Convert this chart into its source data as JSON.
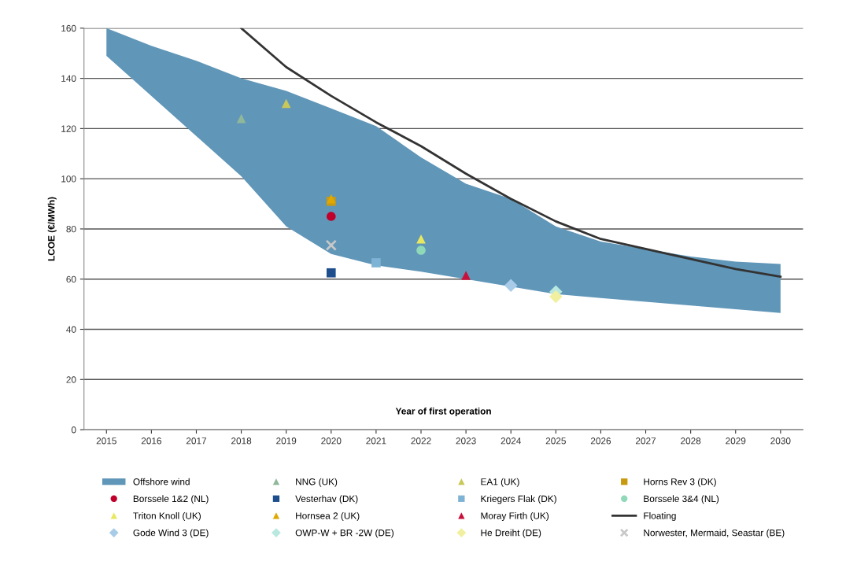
{
  "chart_data": {
    "type": "scatter",
    "xlabel": "Year of first operation",
    "ylabel": "LCOE (€/MWh)",
    "xlim": [
      2014.5,
      2030.5
    ],
    "xticks": [
      2015,
      2016,
      2017,
      2018,
      2019,
      2020,
      2021,
      2022,
      2023,
      2024,
      2025,
      2026,
      2027,
      2028,
      2029,
      2030
    ],
    "ylim": [
      0,
      160
    ],
    "yticks": [
      0,
      20,
      40,
      60,
      80,
      100,
      120,
      140,
      160
    ],
    "grid": "y",
    "legend": "bottom",
    "series": [
      {
        "name": "Offshore wind",
        "type": "area",
        "color": "#6096b8",
        "x": [
          2015,
          2016,
          2017,
          2018,
          2019,
          2020,
          2021,
          2022,
          2023,
          2024,
          2025,
          2026,
          2027,
          2028,
          2029,
          2030
        ],
        "lower": [
          149,
          133,
          117,
          101,
          81,
          70,
          65.5,
          63,
          60,
          57,
          54,
          52.5,
          51,
          49.5,
          48,
          46.5
        ],
        "upper": [
          160,
          153,
          147,
          140,
          135,
          128,
          121,
          108.5,
          98,
          92,
          81,
          75,
          72,
          69,
          67,
          66
        ],
        "values": [
          null,
          null,
          null,
          null,
          null,
          null,
          null,
          null,
          null,
          null,
          null,
          null,
          null,
          null,
          null,
          null
        ]
      },
      {
        "name": "NNG (UK)",
        "type": "scatter",
        "marker": "triangle",
        "color": "#8fb89a",
        "x": [
          2018
        ],
        "values": [
          124
        ]
      },
      {
        "name": "EA1 (UK)",
        "type": "scatter",
        "marker": "triangle",
        "color": "#c8c85a",
        "x": [
          2019
        ],
        "values": [
          130
        ]
      },
      {
        "name": "Horns Rev 3 (DK)",
        "type": "scatter",
        "marker": "square",
        "color": "#c89a10",
        "x": [
          2020
        ],
        "values": [
          91
        ]
      },
      {
        "name": "Borssele 1&2 (NL)",
        "type": "scatter",
        "marker": "circle",
        "color": "#c0002a",
        "x": [
          2020
        ],
        "values": [
          85
        ]
      },
      {
        "name": "Vesterhav (DK)",
        "type": "scatter",
        "marker": "square",
        "color": "#1f4e8c",
        "x": [
          2020
        ],
        "values": [
          62.5
        ]
      },
      {
        "name": "Kriegers Flak (DK)",
        "type": "scatter",
        "marker": "square",
        "color": "#7fb3d5",
        "x": [
          2021
        ],
        "values": [
          66.5
        ]
      },
      {
        "name": "Borssele 3&4 (NL)",
        "type": "scatter",
        "marker": "circle",
        "color": "#8fd8b8",
        "x": [
          2022
        ],
        "values": [
          71.5
        ]
      },
      {
        "name": "Triton Knoll (UK)",
        "type": "scatter",
        "marker": "triangle",
        "color": "#e8e860",
        "x": [
          2022
        ],
        "values": [
          76
        ]
      },
      {
        "name": "Hornsea 2 (UK)",
        "type": "scatter",
        "marker": "triangle",
        "color": "#e0a800",
        "x": [
          2020
        ],
        "values": [
          92
        ]
      },
      {
        "name": "Moray Firth (UK)",
        "type": "scatter",
        "marker": "triangle",
        "color": "#c8103a",
        "x": [
          2023
        ],
        "values": [
          61.5
        ]
      },
      {
        "name": "Floating",
        "type": "line",
        "color": "#333333",
        "x": [
          2018,
          2019,
          2020,
          2021,
          2022,
          2023,
          2024,
          2025,
          2026,
          2027,
          2028,
          2029,
          2030
        ],
        "values": [
          160,
          144.5,
          133,
          122.5,
          113,
          102,
          92,
          83,
          76,
          72,
          68,
          64,
          61
        ]
      },
      {
        "name": "Gode Wind 3 (DE)",
        "type": "scatter",
        "marker": "diamond",
        "color": "#a8cce8",
        "x": [
          2024
        ],
        "values": [
          57.5
        ]
      },
      {
        "name": "OWP-W + BR -2W (DE)",
        "type": "scatter",
        "marker": "diamond",
        "color": "#b8e8e0",
        "x": [
          2025
        ],
        "values": [
          55
        ]
      },
      {
        "name": "He Dreiht (DE)",
        "type": "scatter",
        "marker": "diamond",
        "color": "#f0f0a0",
        "x": [
          2025
        ],
        "values": [
          53
        ]
      },
      {
        "name": "Norwester, Mermaid, Seastar (BE)",
        "type": "scatter",
        "marker": "cross",
        "color": "#c8c8c8",
        "x": [
          2020
        ],
        "values": [
          73.5
        ]
      }
    ]
  }
}
